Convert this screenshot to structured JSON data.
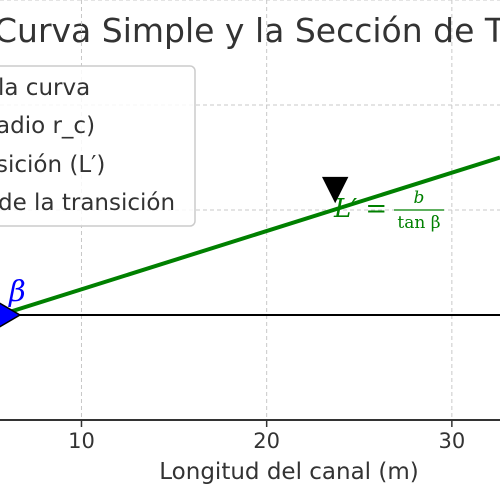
{
  "chart_data": {
    "type": "line",
    "title": "Curva Simple y la Sección de Tr",
    "xlabel": "Longitud del canal (m)",
    "ylabel": "",
    "xlim": [
      5.6,
      32.6
    ],
    "ylim": [
      -5,
      15
    ],
    "x_ticks": [
      10,
      20,
      30
    ],
    "y_gridlines": [
      0,
      5,
      10,
      15
    ],
    "grid": true,
    "series": [
      {
        "name": "",
        "type": "line",
        "color": "#008000",
        "x": [
          5.6,
          32.6
        ],
        "y": [
          0,
          7.5
        ]
      }
    ],
    "baseline": {
      "y": 0,
      "color": "#000000"
    },
    "markers": [
      {
        "shape": "triangle-right",
        "x": 5.6,
        "y": 0,
        "color": "#0000ff"
      },
      {
        "shape": "triangle-down",
        "x": 23.7,
        "y": 5.4,
        "color": "#000000"
      }
    ],
    "annotations": {
      "beta_symbol": "β",
      "length_lhs": "L′ =",
      "length_num": "b",
      "length_den": "tan β"
    },
    "legend": {
      "placement": "top-left",
      "entries": [
        "la curva",
        "adio r_c)",
        "sición (L′)",
        "de la transición"
      ]
    }
  }
}
